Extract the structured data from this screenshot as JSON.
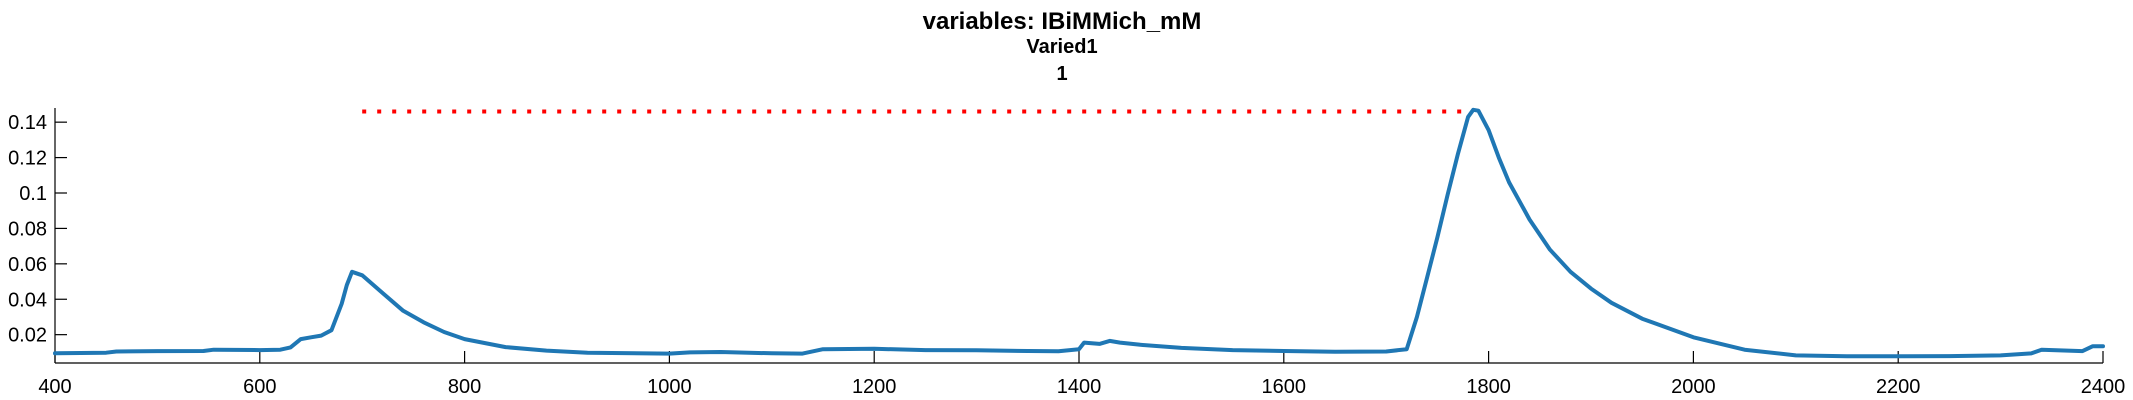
{
  "chart_data": {
    "type": "line",
    "title": "variables: IBiMMich_mM",
    "subtitle_lines": [
      "Varied1",
      "1"
    ],
    "xlabel": "",
    "ylabel": "",
    "xlim": [
      400,
      2400
    ],
    "ylim": [
      0.004,
      0.148
    ],
    "x_ticks": [
      400,
      600,
      800,
      1000,
      1200,
      1400,
      1600,
      1800,
      2000,
      2200,
      2400
    ],
    "x_tick_labels": [
      "400",
      "600",
      "800",
      "1000",
      "1200",
      "1400",
      "1600",
      "1800",
      "2000",
      "2200",
      "2400"
    ],
    "y_ticks": [
      0.02,
      0.04,
      0.06,
      0.08,
      0.1,
      0.12,
      0.14
    ],
    "y_tick_labels": [
      "0.02",
      "0.04",
      "0.06",
      "0.08",
      "0.1",
      "0.12",
      "0.14"
    ],
    "grid": false,
    "colors": {
      "series": "#1f77b4",
      "reference_line": "#ff0000"
    },
    "series": [
      {
        "x": [
          400,
          450,
          460,
          500,
          545,
          555,
          600,
          620,
          630,
          640,
          650,
          660,
          670,
          680,
          685,
          690,
          700,
          720,
          740,
          760,
          780,
          800,
          840,
          880,
          920,
          1000,
          1020,
          1050,
          1100,
          1130,
          1150,
          1200,
          1250,
          1300,
          1350,
          1380,
          1400,
          1405,
          1420,
          1430,
          1440,
          1460,
          1500,
          1550,
          1600,
          1650,
          1700,
          1720,
          1730,
          1740,
          1750,
          1760,
          1770,
          1780,
          1785,
          1790,
          1800,
          1810,
          1820,
          1840,
          1860,
          1880,
          1900,
          1920,
          1950,
          2000,
          2050,
          2100,
          2150,
          2200,
          2250,
          2300,
          2330,
          2340,
          2380,
          2390,
          2400
        ],
        "y": [
          0.0095,
          0.0098,
          0.0105,
          0.0107,
          0.0108,
          0.0115,
          0.0113,
          0.0115,
          0.0128,
          0.0175,
          0.0185,
          0.0195,
          0.0225,
          0.0375,
          0.048,
          0.0555,
          0.0535,
          0.0435,
          0.0335,
          0.027,
          0.0215,
          0.0175,
          0.013,
          0.011,
          0.0098,
          0.0093,
          0.01,
          0.0102,
          0.0095,
          0.0093,
          0.0118,
          0.012,
          0.0113,
          0.0112,
          0.0108,
          0.0106,
          0.0118,
          0.0155,
          0.0148,
          0.0165,
          0.0155,
          0.0143,
          0.0125,
          0.0113,
          0.0108,
          0.0103,
          0.0105,
          0.0118,
          0.03,
          0.0525,
          0.075,
          0.099,
          0.122,
          0.143,
          0.147,
          0.1465,
          0.1355,
          0.12,
          0.106,
          0.085,
          0.068,
          0.0555,
          0.046,
          0.038,
          0.029,
          0.0185,
          0.0115,
          0.0083,
          0.0078,
          0.0078,
          0.0079,
          0.0083,
          0.0094,
          0.0115,
          0.0107,
          0.0135,
          0.0135
        ]
      }
    ],
    "reference_line": {
      "style": "dotted",
      "y": 0.146,
      "x_start": 700,
      "x_end": 1780
    }
  }
}
